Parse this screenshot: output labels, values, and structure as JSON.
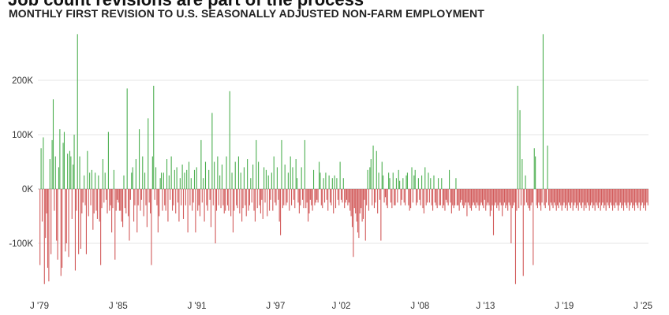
{
  "header": {
    "title": "Job count revisions are part of the process",
    "subtitle": "MONTHLY FIRST REVISION TO U.S. SEASONALLY ADJUSTED NON-FARM EMPLOYMENT"
  },
  "colors": {
    "positive": "#4caf50",
    "negative": "#d25a5a",
    "grid": "#e6e6e6",
    "zero": "#bdbdbd"
  },
  "chart_data": {
    "type": "bar",
    "title": "Job count revisions are part of the process",
    "subtitle": "MONTHLY FIRST REVISION TO U.S. SEASONALLY ADJUSTED NON-FARM EMPLOYMENT",
    "x_start": "1979-01",
    "x_end": "2025-06",
    "ylim": [
      -185000,
      290000
    ],
    "yticks": [
      {
        "value": 200000,
        "label": "200K"
      },
      {
        "value": 100000,
        "label": "100K"
      },
      {
        "value": 0,
        "label": "0K"
      },
      {
        "value": -100000,
        "label": "-100K"
      }
    ],
    "xticks": [
      {
        "label": "J '79",
        "date": "1979-01"
      },
      {
        "label": "J '85",
        "date": "1985-01"
      },
      {
        "label": "J '91",
        "date": "1991-01"
      },
      {
        "label": "J '97",
        "date": "1997-01"
      },
      {
        "label": "J '02",
        "date": "2002-01"
      },
      {
        "label": "J '08",
        "date": "2008-01"
      },
      {
        "label": "J '13",
        "date": "2013-01"
      },
      {
        "label": "J '19",
        "date": "2019-01"
      },
      {
        "label": "J '25",
        "date": "2025-01"
      }
    ],
    "grid": true,
    "series": [
      {
        "values": [
          -140000,
          75000,
          -60000,
          95000,
          -175000,
          -90000,
          -45000,
          -145000,
          -170000,
          55000,
          -120000,
          90000,
          165000,
          -40000,
          60000,
          -95000,
          -130000,
          40000,
          110000,
          -160000,
          -145000,
          85000,
          105000,
          -115000,
          -100000,
          65000,
          -125000,
          70000,
          60000,
          -55000,
          45000,
          100000,
          -150000,
          -40000,
          285000,
          -120000,
          60000,
          -110000,
          -45000,
          -25000,
          25000,
          -30000,
          -120000,
          70000,
          -50000,
          30000,
          -30000,
          35000,
          -75000,
          -45000,
          30000,
          -40000,
          -55000,
          25000,
          -60000,
          -140000,
          -35000,
          55000,
          -25000,
          30000,
          -20000,
          -45000,
          105000,
          -40000,
          -30000,
          -80000,
          -35000,
          35000,
          -130000,
          -40000,
          -20000,
          -25000,
          -40000,
          -40000,
          -60000,
          -70000,
          25000,
          -35000,
          -45000,
          185000,
          -50000,
          -95000,
          -20000,
          30000,
          40000,
          -60000,
          -30000,
          55000,
          -80000,
          -30000,
          110000,
          -40000,
          -20000,
          60000,
          -50000,
          30000,
          -30000,
          -70000,
          130000,
          -25000,
          -45000,
          -140000,
          60000,
          190000,
          -20000,
          40000,
          -30000,
          -80000,
          -50000,
          20000,
          30000,
          -40000,
          30000,
          -30000,
          -40000,
          55000,
          -60000,
          25000,
          -20000,
          60000,
          -40000,
          -30000,
          35000,
          -45000,
          40000,
          -25000,
          -60000,
          20000,
          -30000,
          45000,
          -55000,
          30000,
          -30000,
          35000,
          -80000,
          50000,
          -30000,
          20000,
          -40000,
          -25000,
          35000,
          -80000,
          40000,
          -40000,
          -30000,
          -50000,
          90000,
          -25000,
          20000,
          -60000,
          50000,
          -30000,
          -40000,
          35000,
          -20000,
          -70000,
          140000,
          -30000,
          50000,
          -100000,
          -40000,
          60000,
          -30000,
          25000,
          -35000,
          45000,
          -30000,
          -45000,
          -40000,
          60000,
          -30000,
          -40000,
          180000,
          -50000,
          30000,
          -80000,
          -40000,
          50000,
          -30000,
          -35000,
          60000,
          -45000,
          30000,
          -60000,
          -35000,
          40000,
          -30000,
          -50000,
          55000,
          -40000,
          -30000,
          20000,
          -25000,
          45000,
          -40000,
          -60000,
          90000,
          -35000,
          50000,
          -30000,
          -45000,
          -20000,
          -55000,
          40000,
          -25000,
          35000,
          -50000,
          25000,
          -40000,
          -20000,
          30000,
          -40000,
          60000,
          -25000,
          -30000,
          40000,
          -20000,
          -60000,
          -85000,
          90000,
          -35000,
          -30000,
          45000,
          -30000,
          -25000,
          30000,
          -40000,
          60000,
          -30000,
          40000,
          -20000,
          -35000,
          55000,
          20000,
          -25000,
          -45000,
          -30000,
          40000,
          -20000,
          -35000,
          90000,
          -35000,
          -25000,
          -60000,
          -45000,
          -20000,
          -30000,
          -40000,
          35000,
          -30000,
          -25000,
          -20000,
          -25000,
          50000,
          30000,
          -30000,
          -35000,
          20000,
          -25000,
          30000,
          -20000,
          -40000,
          25000,
          -25000,
          -30000,
          20000,
          -45000,
          25000,
          -35000,
          20000,
          -20000,
          -30000,
          50000,
          -20000,
          -25000,
          20000,
          -35000,
          -25000,
          -20000,
          -30000,
          -25000,
          -40000,
          -50000,
          -70000,
          -125000,
          -35000,
          -45000,
          -60000,
          -80000,
          -90000,
          -45000,
          -35000,
          -60000,
          -55000,
          -20000,
          -95000,
          -30000,
          35000,
          -40000,
          40000,
          55000,
          -30000,
          80000,
          -35000,
          -25000,
          70000,
          -45000,
          30000,
          -20000,
          -95000,
          50000,
          25000,
          -25000,
          -15000,
          -30000,
          -35000,
          30000,
          20000,
          -25000,
          -35000,
          30000,
          -30000,
          -30000,
          20000,
          -25000,
          35000,
          15000,
          -30000,
          -20000,
          20000,
          -25000,
          -30000,
          25000,
          30000,
          -30000,
          -40000,
          -35000,
          40000,
          -25000,
          25000,
          35000,
          -30000,
          -25000,
          20000,
          -20000,
          -30000,
          25000,
          -35000,
          -45000,
          40000,
          -30000,
          -25000,
          30000,
          -25000,
          20000,
          -30000,
          -40000,
          25000,
          -25000,
          -30000,
          -35000,
          20000,
          -30000,
          -30000,
          20000,
          -35000,
          -30000,
          -40000,
          -20000,
          -25000,
          -30000,
          35000,
          -25000,
          -45000,
          -30000,
          -35000,
          -30000,
          20000,
          -30000,
          -30000,
          -40000,
          -25000,
          -20000,
          -30000,
          -35000,
          -30000,
          -25000,
          -50000,
          -25000,
          -30000,
          -35000,
          -40000,
          -30000,
          -25000,
          -30000,
          -35000,
          -25000,
          -30000,
          -40000,
          -30000,
          -25000,
          -30000,
          -35000,
          -20000,
          -40000,
          -30000,
          -25000,
          -30000,
          -50000,
          -40000,
          -30000,
          -85000,
          -30000,
          -25000,
          -35000,
          -30000,
          -40000,
          -25000,
          -30000,
          -50000,
          -30000,
          -25000,
          -35000,
          -30000,
          -40000,
          -25000,
          -30000,
          -100000,
          -35000,
          -30000,
          -25000,
          -175000,
          -40000,
          190000,
          -35000,
          145000,
          -30000,
          55000,
          -160000,
          -30000,
          25000,
          -25000,
          -30000,
          -35000,
          -40000,
          -30000,
          -25000,
          -140000,
          75000,
          60000,
          -30000,
          -35000,
          -25000,
          -30000,
          -40000,
          -25000,
          285000,
          -30000,
          -35000,
          -25000,
          80000,
          -30000,
          -40000,
          -25000,
          -30000,
          -35000,
          -25000,
          -30000,
          -40000,
          -30000,
          -35000,
          -25000,
          -30000,
          -40000,
          -30000,
          -25000,
          -35000,
          -30000,
          -40000,
          -25000,
          -30000,
          -35000,
          -25000,
          -40000,
          -30000,
          -25000,
          -35000,
          -30000,
          -40000,
          -25000,
          -30000,
          -35000,
          -25000,
          -40000,
          -30000,
          -35000,
          -25000,
          -30000,
          -40000,
          -30000,
          -25000,
          -35000,
          -30000,
          -40000,
          -25000,
          -30000,
          -35000,
          -25000,
          -40000,
          -30000,
          -25000,
          -35000,
          -30000,
          -40000,
          -25000,
          -30000,
          -35000,
          -25000,
          -30000,
          -40000,
          -30000,
          -35000,
          -25000,
          -30000,
          -40000,
          -30000,
          -25000,
          -35000,
          -30000,
          -40000,
          -25000,
          -30000,
          -35000,
          -25000,
          -40000,
          -30000,
          -25000,
          -35000,
          -30000,
          -40000,
          -25000,
          -30000,
          -35000,
          -25000,
          -40000,
          -30000,
          -25000,
          -35000,
          -30000,
          -40000,
          -25000,
          -30000
        ]
      }
    ]
  }
}
